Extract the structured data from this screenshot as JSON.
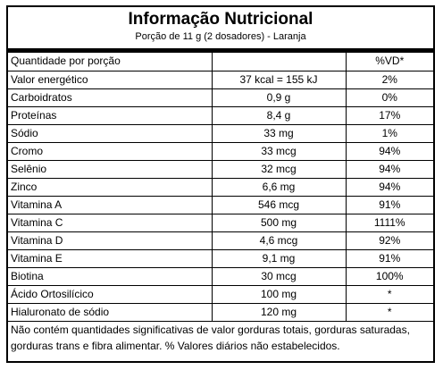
{
  "label": {
    "title": "Informação Nutricional",
    "serving": "Porção de 11 g (2 dosadores) - Laranja"
  },
  "table": {
    "header": {
      "label": "Quantidade por porção",
      "amount": "",
      "dv": "%VD*"
    },
    "rows": [
      {
        "name": "Valor energético",
        "amount": "37 kcal = 155 kJ",
        "dv": "2%"
      },
      {
        "name": "Carboidratos",
        "amount": "0,9 g",
        "dv": "0%"
      },
      {
        "name": "Proteínas",
        "amount": "8,4 g",
        "dv": "17%"
      },
      {
        "name": "Sódio",
        "amount": "33 mg",
        "dv": "1%"
      },
      {
        "name": "Cromo",
        "amount": "33 mcg",
        "dv": "94%"
      },
      {
        "name": "Selênio",
        "amount": "32 mcg",
        "dv": "94%"
      },
      {
        "name": "Zinco",
        "amount": "6,6 mg",
        "dv": "94%"
      },
      {
        "name": "Vitamina A",
        "amount": "546 mcg",
        "dv": "91%"
      },
      {
        "name": "Vitamina C",
        "amount": "500 mg",
        "dv": "1111%"
      },
      {
        "name": "Vitamina D",
        "amount": "4,6 mcg",
        "dv": "92%"
      },
      {
        "name": "Vitamina E",
        "amount": "9,1 mg",
        "dv": "91%"
      },
      {
        "name": "Biotina",
        "amount": "30 mcg",
        "dv": "100%"
      },
      {
        "name": "Ácido Ortosilícico",
        "amount": "100 mg",
        "dv": "*"
      },
      {
        "name": "Hialuronato de sódio",
        "amount": "120 mg",
        "dv": "*"
      }
    ]
  },
  "footnote": "Não contém quantidades significativas de valor gorduras totais, gorduras saturadas, gorduras trans e fibra alimentar. % Valores diários não estabelecidos."
}
